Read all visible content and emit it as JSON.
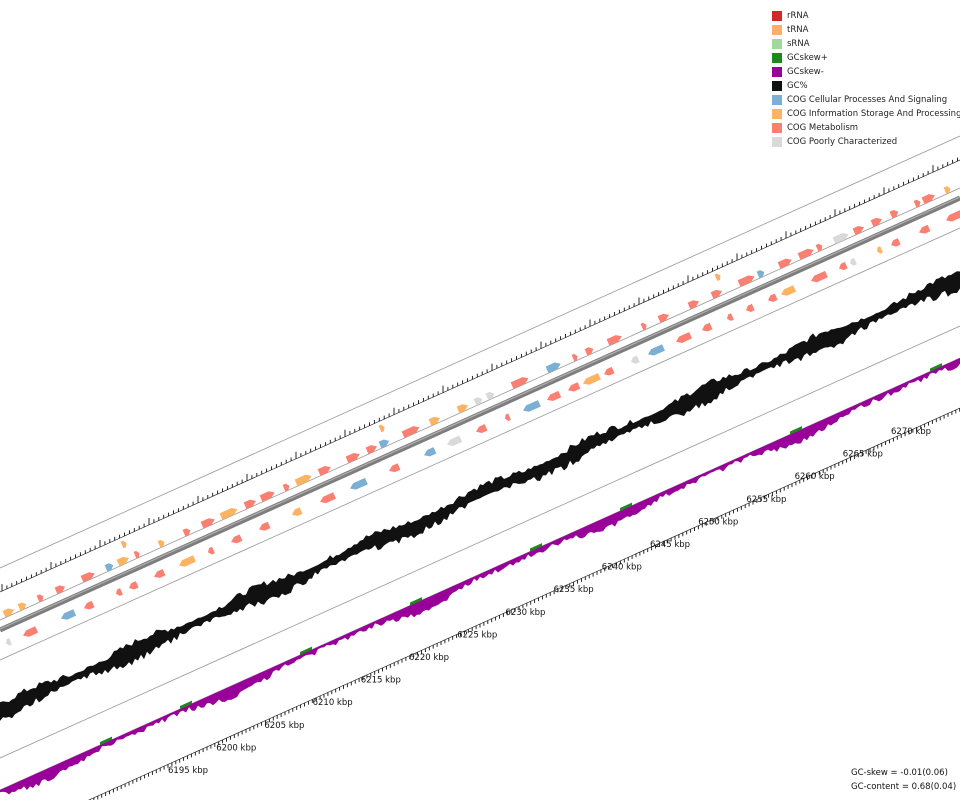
{
  "legend": [
    {
      "label": "rRNA",
      "color": "#d62728"
    },
    {
      "label": "tRNA",
      "color": "#fdae6b"
    },
    {
      "label": "sRNA",
      "color": "#a1d99b"
    },
    {
      "label": "GCskew+",
      "color": "#1a8a1a"
    },
    {
      "label": "GCskew-",
      "color": "#990099"
    },
    {
      "label": "GC%",
      "color": "#111111"
    },
    {
      "label": "COG Cellular Processes And Signaling",
      "color": "#7bafd4"
    },
    {
      "label": "COG Information Storage And Processing",
      "color": "#fdb462"
    },
    {
      "label": "COG Metabolism",
      "color": "#fb8072"
    },
    {
      "label": "COG Poorly Characterized",
      "color": "#d9d9d9"
    }
  ],
  "scale": {
    "unit": "kbp",
    "labels": [
      "6195 kbp",
      "6200 kbp",
      "6205 kbp",
      "6210 kbp",
      "6215 kbp",
      "6220 kbp",
      "6225 kbp",
      "6230 kbp",
      "6235 kbp",
      "6240 kbp",
      "6245 kbp",
      "6250 kbp",
      "6255 kbp",
      "6260 kbp",
      "6265 kbp",
      "6270 kbp"
    ]
  },
  "stats": {
    "gc_skew": "GC-skew = -0.01(0.06)",
    "gc_content": "GC-content = 0.68(0.04)"
  }
}
